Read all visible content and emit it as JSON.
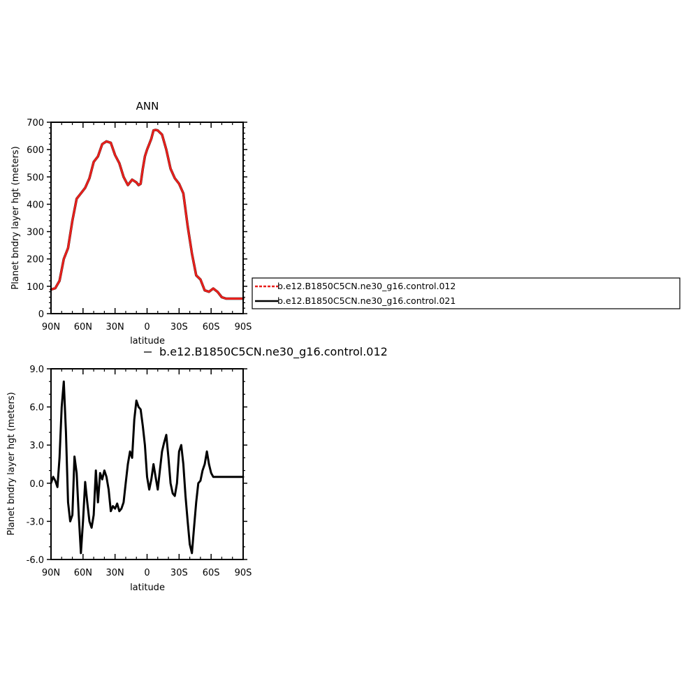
{
  "chart_data": [
    {
      "type": "line",
      "title": "ANN",
      "xlabel": "latitude",
      "ylabel": "Planet bndry layer hgt (meters)",
      "xlim": [
        90,
        -90
      ],
      "ylim": [
        0,
        700
      ],
      "x_ticks": [
        90,
        60,
        30,
        0,
        -30,
        -60,
        -90
      ],
      "x_tick_labels": [
        "90N",
        "60N",
        "30N",
        "0",
        "30S",
        "60S",
        "90S"
      ],
      "y_ticks": [
        0,
        100,
        200,
        300,
        400,
        500,
        600,
        700
      ],
      "y_tick_labels": [
        "0",
        "100",
        "200",
        "300",
        "400",
        "500",
        "600",
        "700"
      ],
      "legend": {
        "placement": "right",
        "entries": [
          {
            "label": "b.e12.B1850C5CN.ne30_g16.control.012",
            "color": "#e8201c",
            "dash": true
          },
          {
            "label": "b.e12.B1850C5CN.ne30_g16.control.021",
            "color": "#000000",
            "dash": false
          }
        ]
      },
      "x": [
        90,
        86,
        82,
        78,
        74,
        70,
        66,
        62,
        58,
        54,
        50,
        46,
        42,
        38,
        34,
        30,
        26,
        22,
        18,
        14,
        10,
        8,
        6,
        4,
        2,
        0,
        -2,
        -4,
        -6,
        -8,
        -10,
        -14,
        -18,
        -22,
        -26,
        -30,
        -34,
        -38,
        -42,
        -46,
        -50,
        -54,
        -58,
        -62,
        -66,
        -70,
        -74,
        -78,
        -82,
        -86,
        -88,
        -90
      ],
      "series": [
        {
          "name": "b.e12.B1850C5CN.ne30_g16.control.021",
          "color": "#000000",
          "values": [
            88,
            93,
            120,
            200,
            240,
            340,
            420,
            440,
            460,
            495,
            555,
            575,
            620,
            630,
            625,
            580,
            550,
            500,
            470,
            490,
            480,
            470,
            475,
            530,
            575,
            600,
            620,
            640,
            670,
            672,
            670,
            655,
            600,
            530,
            495,
            475,
            440,
            320,
            220,
            140,
            125,
            85,
            80,
            92,
            80,
            60,
            55,
            55,
            55,
            55,
            55,
            55
          ]
        },
        {
          "name": "b.e12.B1850C5CN.ne30_g16.control.012",
          "color": "#e8201c",
          "dashed": true,
          "values": [
            88,
            93,
            120,
            200,
            240,
            340,
            420,
            440,
            460,
            495,
            555,
            575,
            620,
            630,
            625,
            580,
            550,
            500,
            470,
            490,
            480,
            470,
            475,
            530,
            575,
            600,
            620,
            640,
            670,
            672,
            670,
            655,
            600,
            530,
            495,
            475,
            440,
            320,
            220,
            140,
            125,
            85,
            80,
            92,
            80,
            60,
            55,
            55,
            55,
            55,
            55,
            55
          ]
        }
      ]
    },
    {
      "type": "line",
      "title": "b.e12.B1850C5CN.ne30_g16.control.012",
      "xlabel": "latitude",
      "ylabel": "Planet bndry layer hgt (meters)",
      "xlim": [
        90,
        -90
      ],
      "ylim": [
        -6,
        9
      ],
      "x_ticks": [
        90,
        60,
        30,
        0,
        -30,
        -60,
        -90
      ],
      "x_tick_labels": [
        "90N",
        "60N",
        "30N",
        "0",
        "30S",
        "60S",
        "90S"
      ],
      "y_ticks": [
        -6,
        -3,
        0,
        3,
        6,
        9
      ],
      "y_tick_labels": [
        "-6.0",
        "-3.0",
        "0.0",
        "3.0",
        "6.0",
        "9.0"
      ],
      "x": [
        90,
        88,
        86,
        84,
        82,
        80,
        78,
        76,
        74,
        72,
        70,
        68,
        66,
        64,
        62,
        60,
        58,
        56,
        54,
        52,
        50,
        48,
        46,
        44,
        42,
        40,
        38,
        36,
        34,
        32,
        30,
        28,
        26,
        24,
        22,
        20,
        18,
        16,
        14,
        12,
        10,
        8,
        6,
        4,
        2,
        0,
        -2,
        -4,
        -6,
        -8,
        -10,
        -12,
        -14,
        -16,
        -18,
        -20,
        -22,
        -24,
        -26,
        -28,
        -30,
        -32,
        -34,
        -36,
        -38,
        -40,
        -42,
        -44,
        -46,
        -48,
        -50,
        -52,
        -54,
        -56,
        -58,
        -60,
        -62,
        -64,
        -66,
        -68,
        -70,
        -72,
        -74,
        -76,
        -78,
        -80,
        -82,
        -84,
        -86,
        -88,
        -90
      ],
      "series": [
        {
          "name": "b.e12.B1850C5CN.ne30_g16.control.012",
          "color": "#000000",
          "values": [
            0.0,
            0.5,
            0.2,
            -0.3,
            2.0,
            6.0,
            8.0,
            4.0,
            -1.5,
            -3.0,
            -2.5,
            2.1,
            0.8,
            -2.5,
            -5.5,
            -3.0,
            0.1,
            -1.5,
            -3.0,
            -3.5,
            -2.5,
            1.0,
            -1.5,
            0.8,
            0.3,
            1.0,
            0.5,
            -0.5,
            -2.2,
            -1.8,
            -2.0,
            -1.6,
            -2.2,
            -2.0,
            -1.5,
            0.0,
            1.5,
            2.5,
            2.0,
            5.0,
            6.5,
            6.0,
            5.8,
            4.5,
            3.0,
            0.5,
            -0.5,
            0.3,
            1.5,
            0.5,
            -0.5,
            1.0,
            2.5,
            3.2,
            3.8,
            2.0,
            0.0,
            -0.8,
            -1.0,
            0.0,
            2.5,
            3.0,
            1.5,
            -1.0,
            -3.0,
            -4.8,
            -5.5,
            -3.5,
            -1.5,
            0.0,
            0.2,
            1.0,
            1.5,
            2.5,
            1.5,
            0.8,
            0.5,
            0.5,
            0.5,
            0.5,
            0.5,
            0.5,
            0.5,
            0.5,
            0.5,
            0.5,
            0.5,
            0.5,
            0.5,
            0.5,
            0.5
          ]
        }
      ]
    }
  ]
}
